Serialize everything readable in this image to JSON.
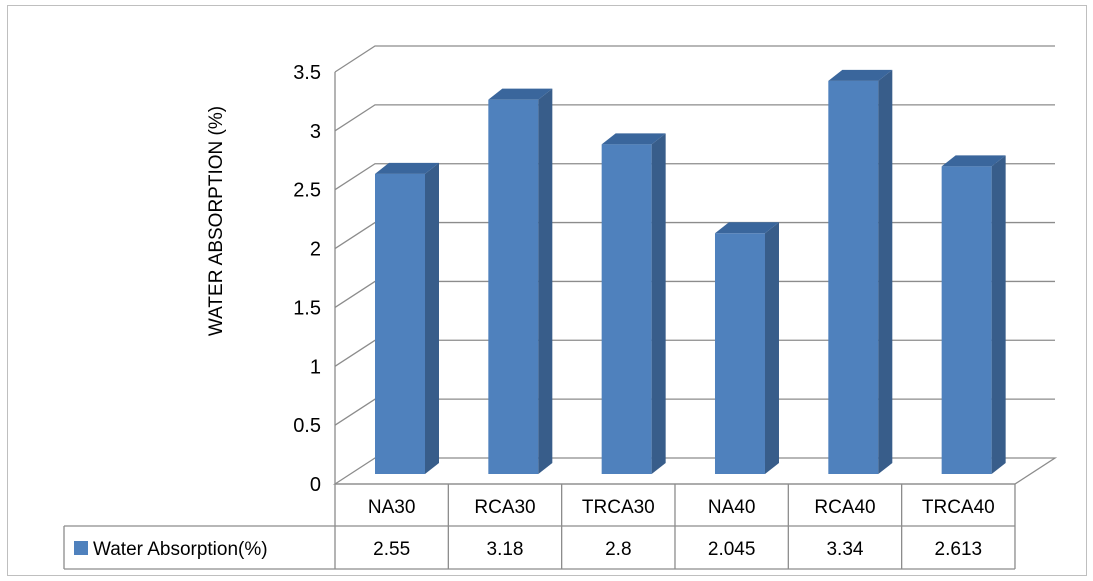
{
  "chart_data": {
    "type": "bar",
    "title": "",
    "xlabel": "",
    "ylabel": "WATER ABSORPTION (%)",
    "ylim": [
      0,
      3.5
    ],
    "yticks": [
      "0",
      "0.5",
      "1",
      "1.5",
      "2",
      "2.5",
      "3",
      "3.5"
    ],
    "categories": [
      "NA30",
      "RCA30",
      "TRCA30",
      "NA40",
      "RCA40",
      "TRCA40"
    ],
    "series": [
      {
        "name": "Water Absorption(%)",
        "values": [
          2.55,
          3.18,
          2.8,
          2.045,
          3.34,
          2.613
        ],
        "value_labels": [
          "2.55",
          "3.18",
          "2.8",
          "2.045",
          "3.34",
          "2.613"
        ],
        "color": "#4f81bd"
      }
    ],
    "grid": true,
    "style": "3d-column",
    "legend": "data-table"
  }
}
